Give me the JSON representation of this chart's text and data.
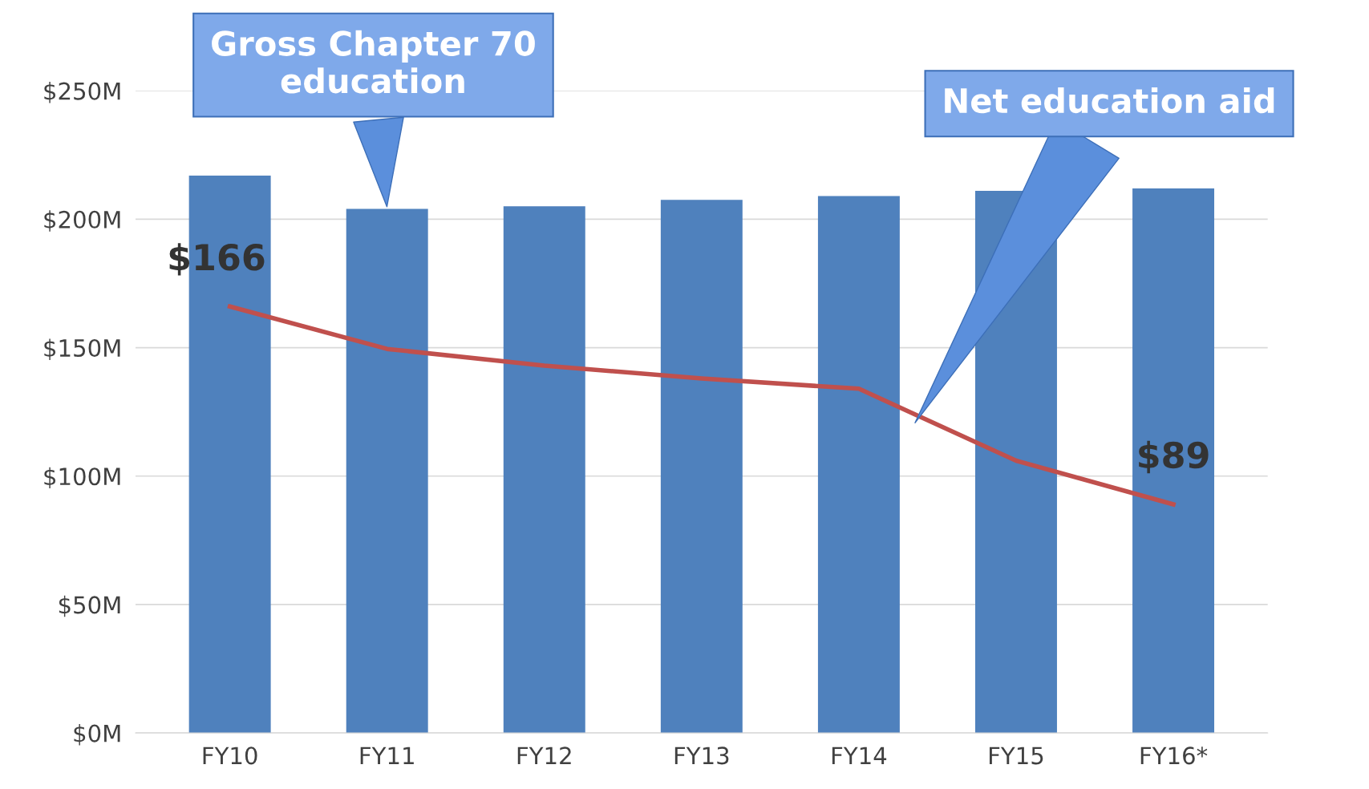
{
  "chart_data": {
    "type": "bar",
    "categories": [
      "FY10",
      "FY11",
      "FY12",
      "FY13",
      "FY14",
      "FY15",
      "FY16*"
    ],
    "series": [
      {
        "color": "#4f81bd",
        "values": [
          217,
          204,
          205,
          207.5,
          209,
          211,
          212
        ]
      },
      {
        "type": "line",
        "color": "#c0504d",
        "values": [
          166,
          149.5,
          143,
          138,
          134,
          106,
          89
        ],
        "value_labels": [
          "$166",
          null,
          null,
          null,
          null,
          null,
          "$89"
        ]
      }
    ],
    "ylim": [
      0,
      250
    ],
    "yticks": [
      {
        "value": 0,
        "label": "$0M"
      },
      {
        "value": 50,
        "label": "$50M"
      },
      {
        "value": 100,
        "label": "$100M"
      },
      {
        "value": 150,
        "label": "$150M"
      },
      {
        "value": 200,
        "label": "$200M"
      },
      {
        "value": 250,
        "label": "$250M"
      }
    ],
    "grid": "y",
    "annotations": [
      "Gross Chapter 70\neducation",
      "Net education aid"
    ]
  }
}
